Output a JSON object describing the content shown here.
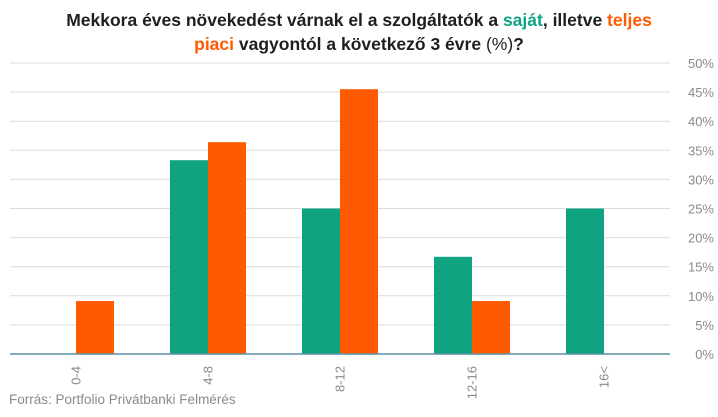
{
  "title": {
    "line1_a": "Mekkora éves növekedést várnak el a szolgáltatók a ",
    "line1_own": "saját",
    "line1_b": ", illetve ",
    "line1_total": "teljes",
    "line2_total": "piaci",
    "line2_a": " vagyontól a következő 3 évre ",
    "line2_paren": "(%)",
    "line2_q": "?"
  },
  "source": "Forrás: Portfolio Privátbanki Felmérés",
  "colors": {
    "own": "#0fa382",
    "total": "#ff5a00",
    "grid": "#dcdcdc",
    "axis": "#5a8fa6"
  },
  "chart_data": {
    "type": "bar",
    "categories": [
      "0-4",
      "4-8",
      "8-12",
      "12-16",
      "16<"
    ],
    "series": [
      {
        "name": "saját",
        "values": [
          0,
          33.3,
          25,
          16.7,
          25
        ]
      },
      {
        "name": "teljes piaci",
        "values": [
          9.1,
          36.4,
          45.5,
          9.1,
          0
        ]
      }
    ],
    "ylim": [
      0,
      50
    ],
    "yticks": [
      0,
      5,
      10,
      15,
      20,
      25,
      30,
      35,
      40,
      45,
      50
    ],
    "ytick_labels": [
      "0%",
      "5%",
      "10%",
      "15%",
      "20%",
      "25%",
      "30%",
      "35%",
      "40%",
      "45%",
      "50%"
    ],
    "grid": true,
    "y_axis_side": "right"
  }
}
